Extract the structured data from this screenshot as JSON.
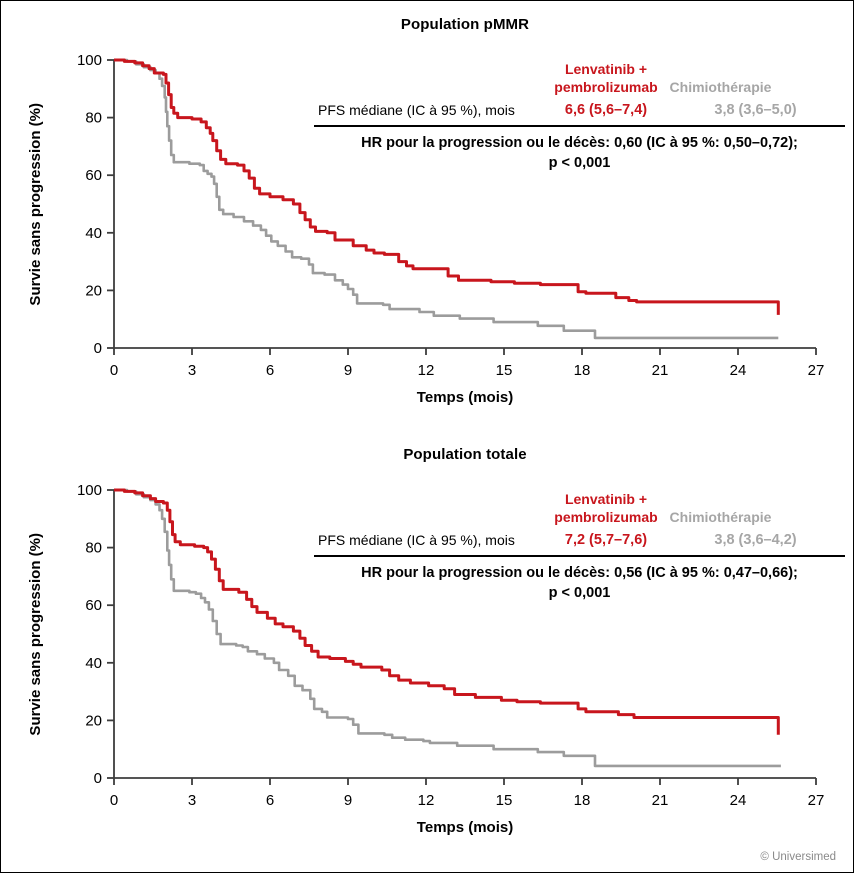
{
  "colors": {
    "lenvatinib_red": "#c8161d",
    "chemo_gray": "#9c9c9c",
    "gray_text": "#a6a6a6",
    "axis": "#3d3d3d",
    "copyright_gray": "#8a8a8a"
  },
  "footer": {
    "copyright": "© Universimed"
  },
  "panels": [
    {
      "title": "Population pMMR",
      "legend": {
        "lenvatinib_line1": "Lenvatinib +",
        "lenvatinib_line2": "pembrolizumab",
        "chemo": "Chimiothérapie"
      },
      "stats": {
        "row_label": "PFS médiane (IC à 95 %), mois",
        "lenvatinib_value": "6,6 (5,6–7,4)",
        "chemo_value": "3,8 (3,6–5,0)",
        "hr_line1": "HR pour la progression ou le décès: 0,60 (IC à 95 %: 0,50–0,72);",
        "hr_line2": "p < 0,001"
      },
      "x_label": "Temps (mois)",
      "y_label": "Survie sans progression (%)"
    },
    {
      "title": "Population totale",
      "legend": {
        "lenvatinib_line1": "Lenvatinib +",
        "lenvatinib_line2": "pembrolizumab",
        "chemo": "Chimiothérapie"
      },
      "stats": {
        "row_label": "PFS médiane (IC à 95 %), mois",
        "lenvatinib_value": "7,2 (5,7–7,6)",
        "chemo_value": "3,8 (3,6–4,2)",
        "hr_line1": "HR pour la progression ou le décès: 0,56 (IC à 95 %: 0,47–0,66);",
        "hr_line2": "p < 0,001"
      },
      "x_label": "Temps (mois)",
      "y_label": "Survie sans progression (%)"
    }
  ],
  "chart_data": [
    {
      "type": "line",
      "step": true,
      "title": "Population pMMR",
      "xlabel": "Temps (mois)",
      "ylabel": "Survie sans progression (%)",
      "xlim": [
        0,
        27
      ],
      "ylim": [
        0,
        100
      ],
      "x_ticks": [
        0,
        3,
        6,
        9,
        12,
        15,
        18,
        21,
        24,
        27
      ],
      "y_ticks": [
        0,
        20,
        40,
        60,
        80,
        100
      ],
      "median_pfs": {
        "lenvatinib": "6,6 (5,6–7,4)",
        "chemo": "3,8 (3,6–5,0)"
      },
      "hazard_ratio": "0,60 (IC à 95 %: 0,50–0,72)",
      "p_value": "p < 0,001",
      "series": [
        {
          "name": "Chimiothérapie",
          "color": "#9c9c9c",
          "points": [
            [
              0,
              100
            ],
            [
              0.5,
              99.5
            ],
            [
              0.85,
              98.5
            ],
            [
              1.15,
              97.5
            ],
            [
              1.4,
              96.5
            ],
            [
              1.6,
              95.5
            ],
            [
              1.75,
              93.5
            ],
            [
              1.85,
              91
            ],
            [
              1.95,
              87
            ],
            [
              2.0,
              82
            ],
            [
              2.05,
              77
            ],
            [
              2.12,
              72
            ],
            [
              2.2,
              67
            ],
            [
              2.3,
              64.5
            ],
            [
              2.9,
              64
            ],
            [
              3.3,
              63.5
            ],
            [
              3.45,
              61.5
            ],
            [
              3.6,
              60.5
            ],
            [
              3.75,
              59.5
            ],
            [
              3.85,
              57
            ],
            [
              3.95,
              52.5
            ],
            [
              4.05,
              48
            ],
            [
              4.2,
              46.5
            ],
            [
              4.6,
              45.5
            ],
            [
              5.0,
              44
            ],
            [
              5.35,
              42.5
            ],
            [
              5.65,
              41
            ],
            [
              5.85,
              39
            ],
            [
              6.05,
              37
            ],
            [
              6.3,
              35.5
            ],
            [
              6.6,
              33.5
            ],
            [
              6.85,
              31.5
            ],
            [
              7.2,
              31
            ],
            [
              7.5,
              29
            ],
            [
              7.65,
              26
            ],
            [
              8.1,
              25.5
            ],
            [
              8.5,
              23.5
            ],
            [
              8.8,
              22
            ],
            [
              9.0,
              20.5
            ],
            [
              9.2,
              18.5
            ],
            [
              9.35,
              15.5
            ],
            [
              10.35,
              15
            ],
            [
              10.6,
              13.5
            ],
            [
              11.75,
              12.5
            ],
            [
              12.3,
              11.2
            ],
            [
              13.3,
              10.2
            ],
            [
              14.6,
              9
            ],
            [
              16.3,
              7.7
            ],
            [
              17.3,
              6
            ],
            [
              18.5,
              3.5
            ],
            [
              25.55,
              3.5
            ]
          ]
        },
        {
          "name": "Lenvatinib + pembrolizumab",
          "color": "#c8161d",
          "points": [
            [
              0,
              100
            ],
            [
              0.4,
              99.5
            ],
            [
              0.8,
              99
            ],
            [
              1.1,
              98
            ],
            [
              1.35,
              97
            ],
            [
              1.55,
              95.5
            ],
            [
              1.9,
              95
            ],
            [
              2.0,
              92
            ],
            [
              2.1,
              88
            ],
            [
              2.2,
              83.5
            ],
            [
              2.3,
              81.5
            ],
            [
              2.45,
              80
            ],
            [
              3.0,
              79.5
            ],
            [
              3.35,
              78.5
            ],
            [
              3.55,
              76.5
            ],
            [
              3.7,
              74.5
            ],
            [
              3.8,
              72
            ],
            [
              3.95,
              68.5
            ],
            [
              4.1,
              65.5
            ],
            [
              4.3,
              64
            ],
            [
              4.75,
              63.5
            ],
            [
              5.0,
              61.5
            ],
            [
              5.2,
              59
            ],
            [
              5.4,
              55.5
            ],
            [
              5.6,
              53.5
            ],
            [
              6.0,
              52.5
            ],
            [
              6.5,
              51.5
            ],
            [
              6.9,
              50
            ],
            [
              7.15,
              47
            ],
            [
              7.35,
              44.5
            ],
            [
              7.55,
              42
            ],
            [
              7.75,
              40.5
            ],
            [
              8.2,
              40
            ],
            [
              8.5,
              37.5
            ],
            [
              9.2,
              35.5
            ],
            [
              9.7,
              34
            ],
            [
              10.0,
              33
            ],
            [
              10.4,
              32.5
            ],
            [
              10.95,
              30
            ],
            [
              11.25,
              28.5
            ],
            [
              11.5,
              27.5
            ],
            [
              12.85,
              25
            ],
            [
              13.25,
              23.5
            ],
            [
              14.5,
              23
            ],
            [
              15.4,
              22.5
            ],
            [
              16.4,
              22
            ],
            [
              17.85,
              19.5
            ],
            [
              18.15,
              19
            ],
            [
              19.3,
              17.5
            ],
            [
              19.8,
              16.5
            ],
            [
              20.1,
              16
            ],
            [
              25.45,
              16
            ],
            [
              25.55,
              11.5
            ]
          ]
        }
      ]
    },
    {
      "type": "line",
      "step": true,
      "title": "Population totale",
      "xlabel": "Temps (mois)",
      "ylabel": "Survie sans progression (%)",
      "xlim": [
        0,
        27
      ],
      "ylim": [
        0,
        100
      ],
      "x_ticks": [
        0,
        3,
        6,
        9,
        12,
        15,
        18,
        21,
        24,
        27
      ],
      "y_ticks": [
        0,
        20,
        40,
        60,
        80,
        100
      ],
      "median_pfs": {
        "lenvatinib": "7,2 (5,7–7,6)",
        "chemo": "3,8 (3,6–4,2)"
      },
      "hazard_ratio": "0,56 (IC à 95 %: 0,47–0,66)",
      "p_value": "p < 0,001",
      "series": [
        {
          "name": "Chimiothérapie",
          "color": "#9c9c9c",
          "points": [
            [
              0,
              100
            ],
            [
              0.5,
              99.5
            ],
            [
              0.85,
              98.5
            ],
            [
              1.15,
              97.5
            ],
            [
              1.4,
              96.5
            ],
            [
              1.6,
              95
            ],
            [
              1.75,
              93
            ],
            [
              1.85,
              90
            ],
            [
              1.95,
              85.5
            ],
            [
              2.05,
              79
            ],
            [
              2.12,
              74
            ],
            [
              2.2,
              69
            ],
            [
              2.3,
              65
            ],
            [
              2.9,
              64.5
            ],
            [
              3.15,
              64
            ],
            [
              3.35,
              62.5
            ],
            [
              3.5,
              61
            ],
            [
              3.65,
              58.5
            ],
            [
              3.8,
              54.5
            ],
            [
              3.95,
              50
            ],
            [
              4.1,
              46.5
            ],
            [
              4.7,
              46
            ],
            [
              4.95,
              45.5
            ],
            [
              5.15,
              44
            ],
            [
              5.5,
              43
            ],
            [
              5.8,
              41.5
            ],
            [
              6.15,
              40
            ],
            [
              6.35,
              37.5
            ],
            [
              6.7,
              35.5
            ],
            [
              6.95,
              32
            ],
            [
              7.25,
              30.5
            ],
            [
              7.55,
              27.5
            ],
            [
              7.7,
              24
            ],
            [
              8.0,
              23
            ],
            [
              8.2,
              21
            ],
            [
              9.0,
              20.5
            ],
            [
              9.2,
              18.5
            ],
            [
              9.4,
              15.5
            ],
            [
              10.4,
              15
            ],
            [
              10.7,
              14
            ],
            [
              11.2,
              13.3
            ],
            [
              11.9,
              12.8
            ],
            [
              12.15,
              12.2
            ],
            [
              13.2,
              11.2
            ],
            [
              14.6,
              10
            ],
            [
              16.3,
              9
            ],
            [
              17.3,
              7.7
            ],
            [
              18.5,
              4.2
            ],
            [
              25.65,
              4.2
            ]
          ]
        },
        {
          "name": "Lenvatinib + pembrolizumab",
          "color": "#c8161d",
          "points": [
            [
              0,
              100
            ],
            [
              0.4,
              99.5
            ],
            [
              0.8,
              99
            ],
            [
              1.1,
              98
            ],
            [
              1.4,
              97
            ],
            [
              1.6,
              96
            ],
            [
              1.9,
              95.5
            ],
            [
              2.05,
              93
            ],
            [
              2.15,
              89
            ],
            [
              2.25,
              84.5
            ],
            [
              2.35,
              82
            ],
            [
              2.55,
              81
            ],
            [
              3.1,
              80.5
            ],
            [
              3.45,
              80
            ],
            [
              3.6,
              78.5
            ],
            [
              3.75,
              76
            ],
            [
              3.9,
              72.5
            ],
            [
              4.05,
              68.5
            ],
            [
              4.2,
              65.5
            ],
            [
              4.8,
              64.5
            ],
            [
              5.1,
              62
            ],
            [
              5.3,
              59.5
            ],
            [
              5.5,
              57.5
            ],
            [
              5.9,
              55.5
            ],
            [
              6.2,
              53.5
            ],
            [
              6.5,
              52.5
            ],
            [
              6.9,
              51
            ],
            [
              7.15,
              48.5
            ],
            [
              7.35,
              46
            ],
            [
              7.6,
              44
            ],
            [
              7.85,
              42
            ],
            [
              8.3,
              41.5
            ],
            [
              8.9,
              40.5
            ],
            [
              9.2,
              39.5
            ],
            [
              9.5,
              38.5
            ],
            [
              10.3,
              37.5
            ],
            [
              10.6,
              35.5
            ],
            [
              10.95,
              34
            ],
            [
              11.4,
              33
            ],
            [
              12.1,
              32
            ],
            [
              12.7,
              31
            ],
            [
              13.1,
              29
            ],
            [
              13.9,
              28
            ],
            [
              14.9,
              27
            ],
            [
              15.5,
              26.5
            ],
            [
              16.4,
              26
            ],
            [
              17.85,
              24
            ],
            [
              18.15,
              23
            ],
            [
              19.4,
              22
            ],
            [
              20.0,
              21
            ],
            [
              25.45,
              21
            ],
            [
              25.55,
              15
            ]
          ]
        }
      ]
    }
  ]
}
